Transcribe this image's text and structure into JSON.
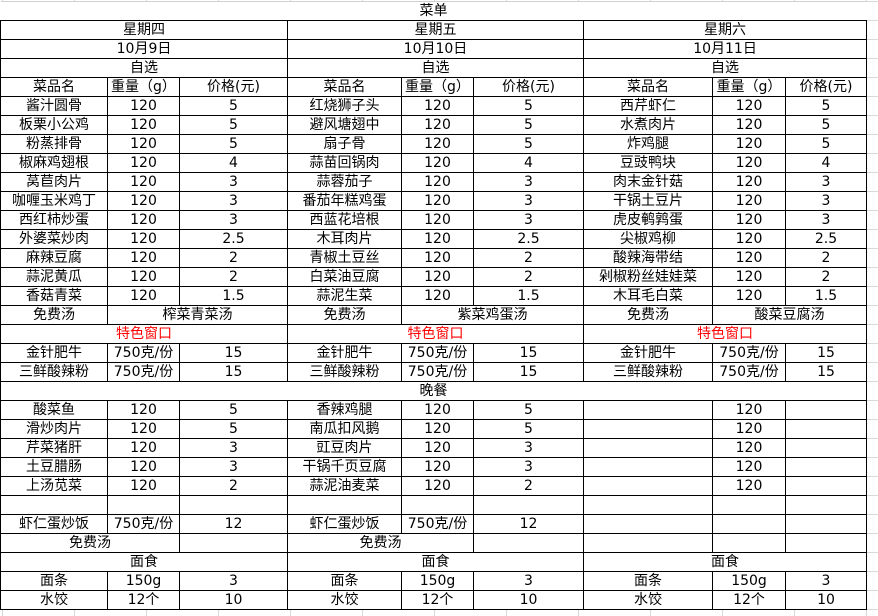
{
  "title": "菜单",
  "lunch_label": "自选",
  "dinner_label": "晚餐",
  "headers": [
    "菜品名",
    "重量（g）",
    "价格(元)"
  ],
  "colors": {
    "special": "#ff0000",
    "border": "#000000"
  },
  "days": [
    {
      "weekday": "星期四",
      "date": "10月9日",
      "lunch": [
        [
          "酱汁圆骨",
          "120",
          "5"
        ],
        [
          "板栗小公鸡",
          "120",
          "5"
        ],
        [
          "粉蒸排骨",
          "120",
          "5"
        ],
        [
          "椒麻鸡翅根",
          "120",
          "4"
        ],
        [
          "莴苣肉片",
          "120",
          "3"
        ],
        [
          "咖喱玉米鸡丁",
          "120",
          "3"
        ],
        [
          "西红柿炒蛋",
          "120",
          "3"
        ],
        [
          "外婆菜炒肉",
          "120",
          "2.5"
        ],
        [
          "麻辣豆腐",
          "120",
          "2"
        ],
        [
          "蒜泥黄瓜",
          "120",
          "2"
        ],
        [
          "香菇青菜",
          "120",
          "1.5"
        ]
      ],
      "free_soup_label": "免费汤",
      "free_soup": "榨菜青菜汤",
      "special_label": "特色窗口",
      "special": [
        [
          "金针肥牛",
          "750克/份",
          "15"
        ],
        [
          "三鲜酸辣粉",
          "750克/份",
          "15"
        ]
      ],
      "dinner": [
        [
          "酸菜鱼",
          "120",
          "5"
        ],
        [
          "滑炒肉片",
          "120",
          "5"
        ],
        [
          "芹菜猪肝",
          "120",
          "3"
        ],
        [
          "土豆腊肠",
          "120",
          "3"
        ],
        [
          "上汤苋菜",
          "120",
          "2"
        ]
      ],
      "dinner_rice": [
        "虾仁蛋炒饭",
        "750克/份",
        "12"
      ],
      "dinner_soup_label": "免费汤",
      "noodle_label": "面食",
      "noodles": [
        [
          "面条",
          "150g",
          "3"
        ],
        [
          "水饺",
          "12个",
          "10"
        ]
      ]
    },
    {
      "weekday": "星期五",
      "date": "10月10日",
      "lunch": [
        [
          "红烧狮子头",
          "120",
          "5"
        ],
        [
          "避风塘翅中",
          "120",
          "5"
        ],
        [
          "扇子骨",
          "120",
          "5"
        ],
        [
          "蒜苗回锅肉",
          "120",
          "4"
        ],
        [
          "蒜蓉茄子",
          "120",
          "3"
        ],
        [
          "番茄年糕鸡蛋",
          "120",
          "3"
        ],
        [
          "西蓝花培根",
          "120",
          "3"
        ],
        [
          "木耳肉片",
          "120",
          "2.5"
        ],
        [
          "青椒土豆丝",
          "120",
          "2"
        ],
        [
          "白菜油豆腐",
          "120",
          "2"
        ],
        [
          "蒜泥生菜",
          "120",
          "1.5"
        ]
      ],
      "free_soup_label": "免费汤",
      "free_soup": "紫菜鸡蛋汤",
      "special_label": "特色窗口",
      "special": [
        [
          "金针肥牛",
          "750克/份",
          "15"
        ],
        [
          "三鲜酸辣粉",
          "750克/份",
          "15"
        ]
      ],
      "dinner": [
        [
          "香辣鸡腿",
          "120",
          "5"
        ],
        [
          "南瓜扣风鹅",
          "120",
          "5"
        ],
        [
          "豇豆肉片",
          "120",
          "3"
        ],
        [
          "干锅千页豆腐",
          "120",
          "3"
        ],
        [
          "蒜泥油麦菜",
          "120",
          "2"
        ]
      ],
      "dinner_rice": [
        "虾仁蛋炒饭",
        "750克/份",
        "12"
      ],
      "dinner_soup_label": "免费汤",
      "noodle_label": "面食",
      "noodles": [
        [
          "面条",
          "150g",
          "3"
        ],
        [
          "水饺",
          "12个",
          "10"
        ]
      ]
    },
    {
      "weekday": "星期六",
      "date": "10月11日",
      "lunch": [
        [
          "西芹虾仁",
          "120",
          "5"
        ],
        [
          "水煮肉片",
          "120",
          "5"
        ],
        [
          "炸鸡腿",
          "120",
          "5"
        ],
        [
          "豆豉鸭块",
          "120",
          "4"
        ],
        [
          "肉末金针菇",
          "120",
          "3"
        ],
        [
          "干锅土豆片",
          "120",
          "3"
        ],
        [
          "虎皮鹌鹑蛋",
          "120",
          "3"
        ],
        [
          "尖椒鸡柳",
          "120",
          "2.5"
        ],
        [
          "酸辣海带结",
          "120",
          "2"
        ],
        [
          "剁椒粉丝娃娃菜",
          "120",
          "2"
        ],
        [
          "木耳毛白菜",
          "120",
          "1.5"
        ]
      ],
      "free_soup_label": "免费汤",
      "free_soup": "酸菜豆腐汤",
      "special_label": "特色窗口",
      "special": [
        [
          "金针肥牛",
          "750克/份",
          "15"
        ],
        [
          "三鲜酸辣粉",
          "750克/份",
          "15"
        ]
      ],
      "dinner": [
        [
          "",
          "120",
          ""
        ],
        [
          "",
          "120",
          ""
        ],
        [
          "",
          "120",
          ""
        ],
        [
          "",
          "120",
          ""
        ],
        [
          "",
          "120",
          ""
        ]
      ],
      "dinner_rice": [
        "",
        "",
        ""
      ],
      "dinner_soup_label": "",
      "noodle_label": "面食",
      "noodles": [
        [
          "面条",
          "150g",
          "3"
        ],
        [
          "水饺",
          "12个",
          "10"
        ]
      ]
    }
  ]
}
